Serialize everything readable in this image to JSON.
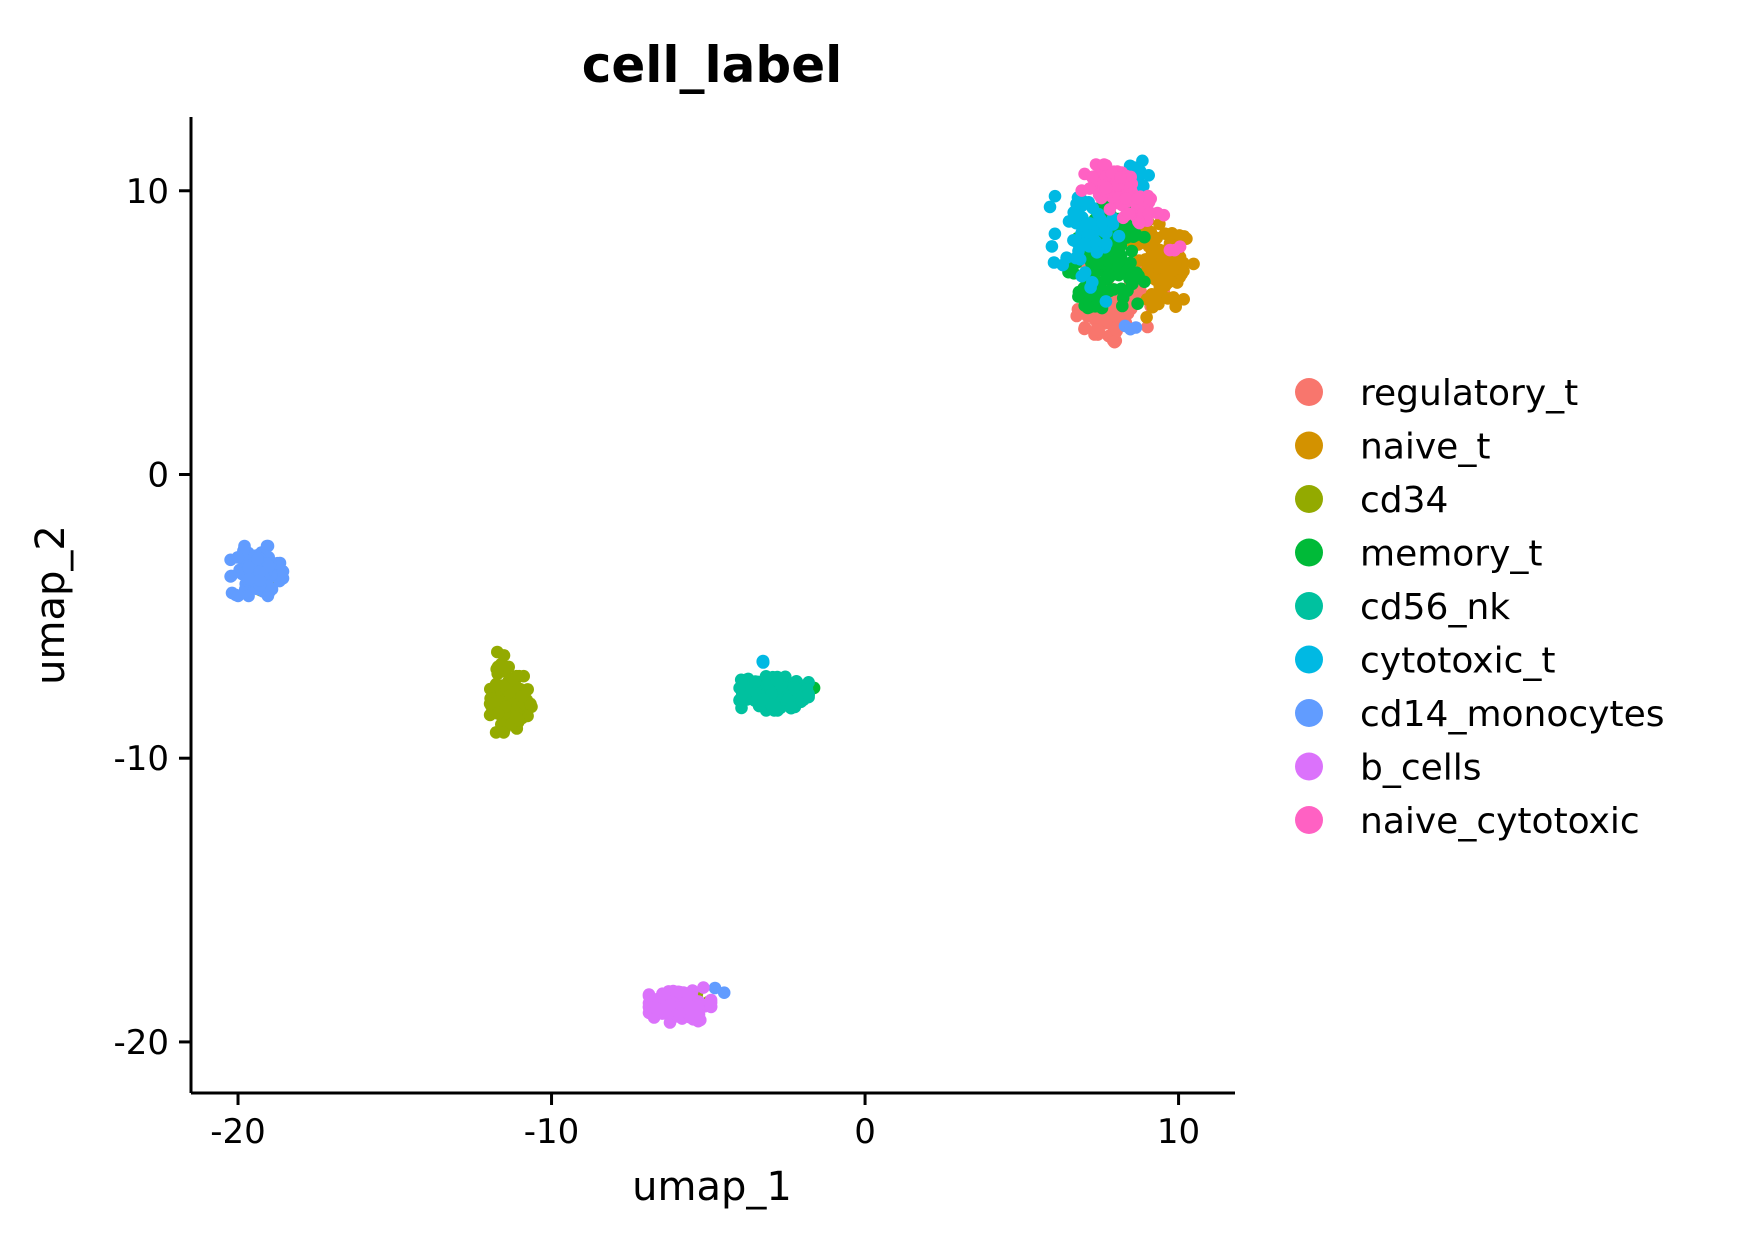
{
  "chart_data": {
    "type": "scatter",
    "title": "cell_label",
    "xlabel": "umap_1",
    "ylabel": "umap_2",
    "xlim": [
      -21.5,
      11.8
    ],
    "ylim": [
      -21.8,
      12.6
    ],
    "xticks": [
      -20,
      -10,
      0,
      10
    ],
    "yticks": [
      -20,
      -10,
      0,
      10
    ],
    "xtick_labels": [
      "-20",
      "-10",
      "0",
      "10"
    ],
    "ytick_labels": [
      "-20",
      "-10",
      "0",
      "10"
    ],
    "grid": false,
    "legend_position": "right",
    "series": [
      {
        "name": "regulatory_t",
        "color": "#F8766D",
        "clusters": [
          {
            "center": [
              7.8,
              5.6
            ],
            "spread": [
              0.55,
              0.55
            ],
            "n": 70
          },
          {
            "center": [
              8.6,
              6.8
            ],
            "spread": [
              0.7,
              0.5
            ],
            "n": 30
          },
          {
            "center": [
              9.9,
              8.1
            ],
            "spread": [
              0.25,
              0.2
            ],
            "n": 4
          }
        ]
      },
      {
        "name": "naive_t",
        "color": "#D39200",
        "clusters": [
          {
            "center": [
              9.6,
              7.3
            ],
            "spread": [
              0.4,
              0.8
            ],
            "n": 90
          },
          {
            "center": [
              8.9,
              8.4
            ],
            "spread": [
              0.3,
              0.35
            ],
            "n": 15
          }
        ]
      },
      {
        "name": "cd34",
        "color": "#93AA00",
        "clusters": [
          {
            "center": [
              -11.3,
              -8.1
            ],
            "spread": [
              0.3,
              0.45
            ],
            "n": 110
          },
          {
            "center": [
              -11.6,
              -6.8
            ],
            "spread": [
              0.15,
              0.3
            ],
            "n": 14
          },
          {
            "center": [
              -19.0,
              -3.9
            ],
            "spread": [
              0.15,
              0.15
            ],
            "n": 5
          },
          {
            "center": [
              -5.3,
              -18.4
            ],
            "spread": [
              0.2,
              0.15
            ],
            "n": 3
          }
        ]
      },
      {
        "name": "memory_t",
        "color": "#00BA38",
        "clusters": [
          {
            "center": [
              7.7,
              7.7
            ],
            "spread": [
              0.55,
              0.8
            ],
            "n": 120
          },
          {
            "center": [
              7.3,
              6.2
            ],
            "spread": [
              0.3,
              0.3
            ],
            "n": 20
          },
          {
            "center": [
              -1.8,
              -7.5
            ],
            "spread": [
              0.1,
              0.1
            ],
            "n": 2
          }
        ]
      },
      {
        "name": "cd56_nk",
        "color": "#00C19F",
        "clusters": [
          {
            "center": [
              -2.9,
              -7.7
            ],
            "spread": [
              0.5,
              0.28
            ],
            "n": 170
          }
        ]
      },
      {
        "name": "cytotoxic_t",
        "color": "#00B9E3",
        "clusters": [
          {
            "center": [
              7.0,
              8.3
            ],
            "spread": [
              0.5,
              1.0
            ],
            "n": 55
          },
          {
            "center": [
              8.4,
              10.4
            ],
            "spread": [
              0.6,
              0.3
            ],
            "n": 25
          },
          {
            "center": [
              -3.2,
              -6.8
            ],
            "spread": [
              0.1,
              0.12
            ],
            "n": 3
          }
        ]
      },
      {
        "name": "cd14_monocytes",
        "color": "#619CFF",
        "clusters": [
          {
            "center": [
              -19.4,
              -3.4
            ],
            "spread": [
              0.38,
              0.4
            ],
            "n": 120
          },
          {
            "center": [
              -4.6,
              -18.2
            ],
            "spread": [
              0.1,
              0.1
            ],
            "n": 2
          },
          {
            "center": [
              8.3,
              5.2
            ],
            "spread": [
              0.2,
              0.15
            ],
            "n": 3
          }
        ]
      },
      {
        "name": "b_cells",
        "color": "#DB72FB",
        "clusters": [
          {
            "center": [
              -5.9,
              -18.7
            ],
            "spread": [
              0.45,
              0.28
            ],
            "n": 140
          }
        ]
      },
      {
        "name": "naive_cytotoxic",
        "color": "#FF61C3",
        "clusters": [
          {
            "center": [
              7.9,
              10.2
            ],
            "spread": [
              0.45,
              0.35
            ],
            "n": 60
          },
          {
            "center": [
              8.8,
              9.4
            ],
            "spread": [
              0.45,
              0.3
            ],
            "n": 25
          },
          {
            "center": [
              9.9,
              8.0
            ],
            "spread": [
              0.2,
              0.15
            ],
            "n": 3
          }
        ]
      }
    ]
  }
}
